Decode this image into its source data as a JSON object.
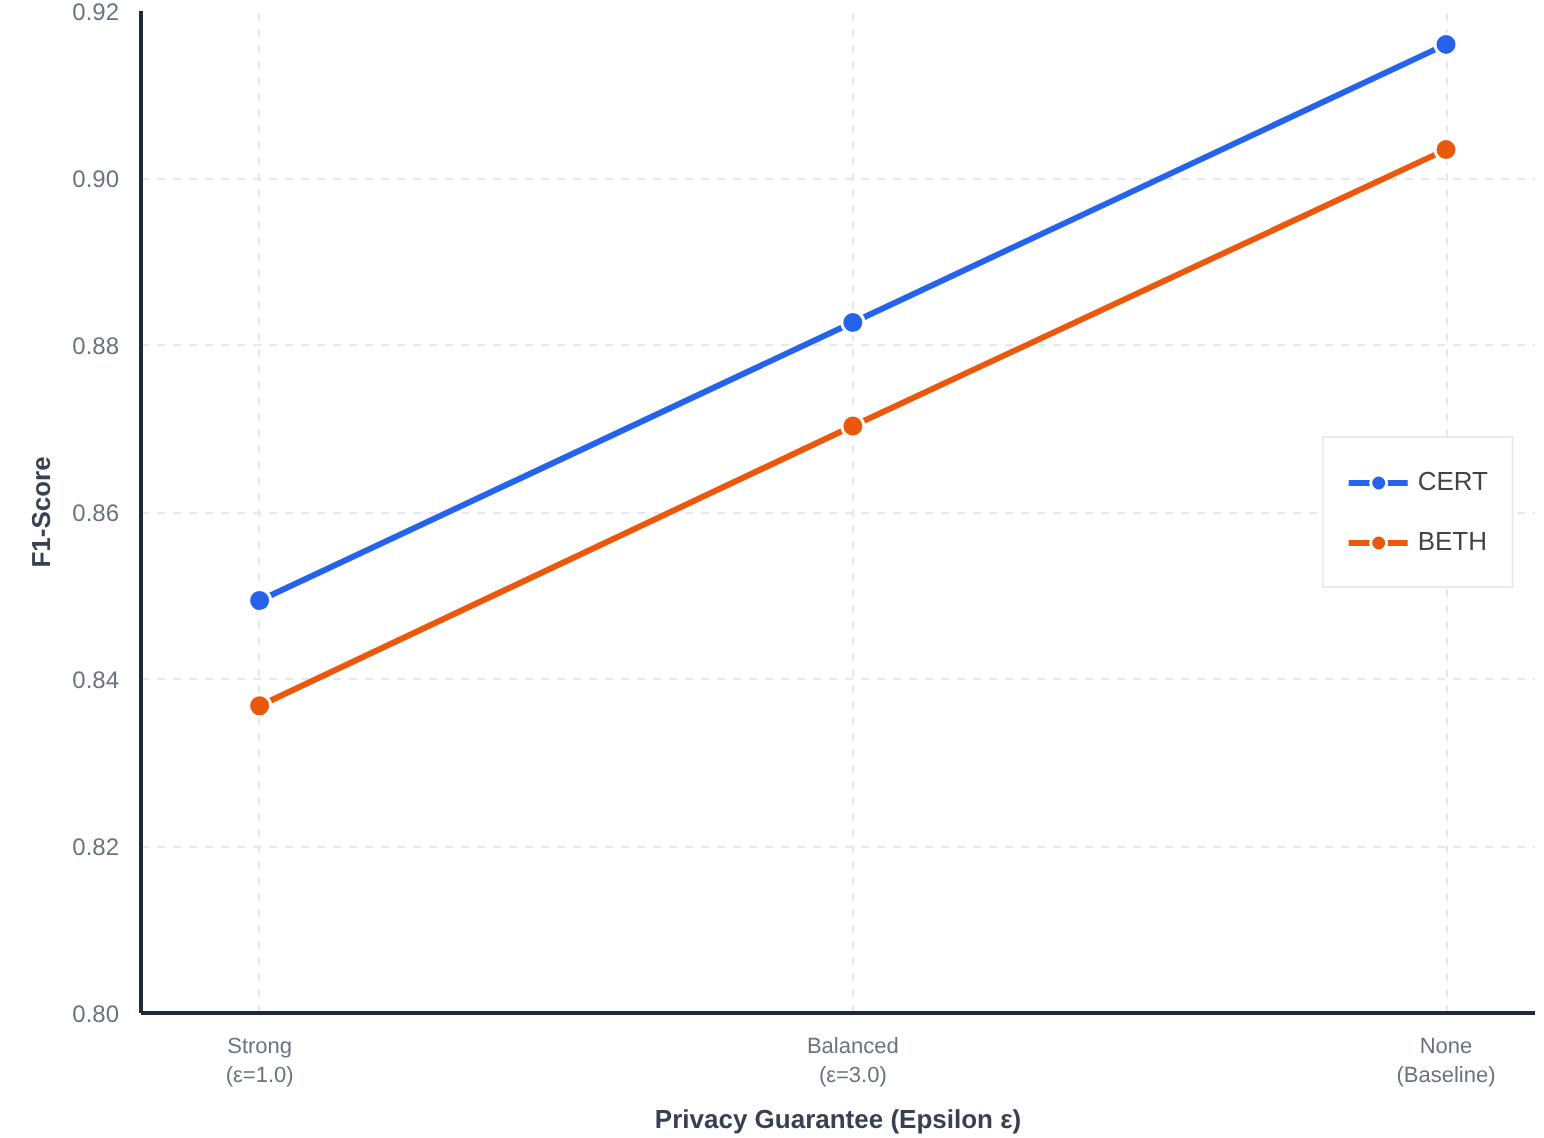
{
  "chart_data": {
    "type": "line",
    "xlabel": "Privacy Guarantee (Epsilon ε)",
    "ylabel": "F1-Score",
    "categories": [
      "Strong\n(ε=1.0)",
      "Balanced\n(ε=3.0)",
      "None\n(Baseline)"
    ],
    "series": [
      {
        "name": "CERT",
        "color": "#2563eb",
        "values": [
          0.8494,
          0.8827,
          0.916
        ]
      },
      {
        "name": "BETH",
        "color": "#ea580c",
        "values": [
          0.8368,
          0.8703,
          0.9034
        ]
      }
    ],
    "ylim": [
      0.8,
      0.92
    ],
    "yticks": [
      {
        "value": 0.8,
        "label": "0.80"
      },
      {
        "value": 0.82,
        "label": "0.82"
      },
      {
        "value": 0.84,
        "label": "0.84"
      },
      {
        "value": 0.86,
        "label": "0.86"
      },
      {
        "value": 0.88,
        "label": "0.88"
      },
      {
        "value": 0.9,
        "label": "0.90"
      },
      {
        "value": 0.92,
        "label": "0.92"
      }
    ],
    "grid": true,
    "legend": "right",
    "marker": "circle",
    "line_style": "solid"
  }
}
